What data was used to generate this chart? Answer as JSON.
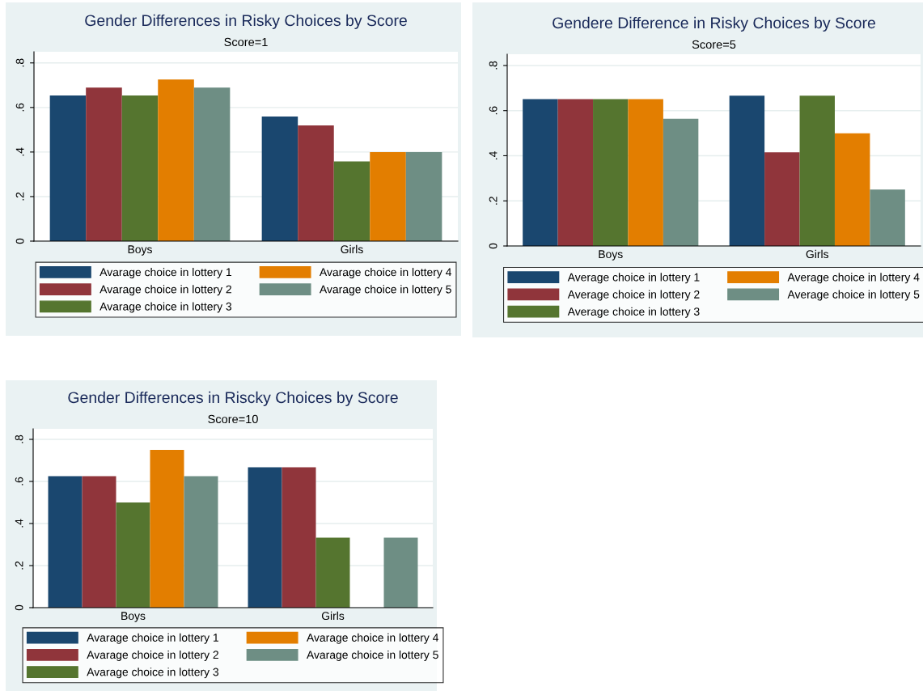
{
  "chart_data": [
    {
      "type": "bar",
      "title": "Gender Differences in Risky Choices by Score",
      "subtitle": "Score=1",
      "categories": [
        "Boys",
        "Girls"
      ],
      "ylim": [
        0,
        0.85
      ],
      "yticks": [
        0,
        {
          "value": 0.2,
          "label": ".2"
        },
        {
          "value": 0.4,
          "label": ".4"
        },
        {
          "value": 0.6,
          "label": ".6"
        },
        {
          "value": 0.8,
          "label": ".8"
        }
      ],
      "grid": "y",
      "legend": "bottom",
      "series": [
        {
          "name": "Avarage choice in lottery 1",
          "color": "#1a476f",
          "values": [
            0.654,
            0.559
          ]
        },
        {
          "name": "Avarage choice in lottery 2",
          "color": "#90353b",
          "values": [
            0.689,
            0.519
          ]
        },
        {
          "name": "Avarage choice in lottery 3",
          "color": "#55752f",
          "values": [
            0.654,
            0.358
          ]
        },
        {
          "name": "Avarage choice in lottery 4",
          "color": "#e37e00",
          "values": [
            0.726,
            0.4
          ]
        },
        {
          "name": "Avarage choice in lottery 5",
          "color": "#6e8e84",
          "values": [
            0.689,
            0.4
          ]
        }
      ]
    },
    {
      "type": "bar",
      "title": "Gendere Difference in Risky Choices by Score",
      "subtitle": "Score=5",
      "categories": [
        "Boys",
        "Girls"
      ],
      "ylim": [
        0,
        0.85
      ],
      "yticks": [
        0,
        {
          "value": 0.2,
          "label": ".2"
        },
        {
          "value": 0.4,
          "label": ".4"
        },
        {
          "value": 0.6,
          "label": ".6"
        },
        {
          "value": 0.8,
          "label": ".8"
        }
      ],
      "grid": "y",
      "legend": "bottom",
      "series": [
        {
          "name": "Average choice in lottery 1",
          "color": "#1a476f",
          "values": [
            0.651,
            0.666
          ]
        },
        {
          "name": "Average choice in lottery 2",
          "color": "#90353b",
          "values": [
            0.651,
            0.415
          ]
        },
        {
          "name": "Average choice in lottery 3",
          "color": "#55752f",
          "values": [
            0.651,
            0.666
          ]
        },
        {
          "name": "Average choice in lottery 4",
          "color": "#e37e00",
          "values": [
            0.651,
            0.499
          ]
        },
        {
          "name": "Average choice in lottery 5",
          "color": "#6e8e84",
          "values": [
            0.564,
            0.25
          ]
        }
      ]
    },
    {
      "type": "bar",
      "title": "Gender Differences in Riscky Choices by Score",
      "subtitle": "Score=10",
      "categories": [
        "Boys",
        "Girls"
      ],
      "ylim": [
        0,
        0.85
      ],
      "yticks": [
        0,
        {
          "value": 0.2,
          "label": ".2"
        },
        {
          "value": 0.4,
          "label": ".4"
        },
        {
          "value": 0.6,
          "label": ".6"
        },
        {
          "value": 0.8,
          "label": ".8"
        }
      ],
      "grid": "y",
      "legend": "bottom",
      "series": [
        {
          "name": "Avarage choice in lottery 1",
          "color": "#1a476f",
          "values": [
            0.625,
            0.667
          ]
        },
        {
          "name": "Avarage choice in lottery 2",
          "color": "#90353b",
          "values": [
            0.625,
            0.667
          ]
        },
        {
          "name": "Avarage choice in lottery 3",
          "color": "#55752f",
          "values": [
            0.5,
            0.333
          ]
        },
        {
          "name": "Avarage choice in lottery 4",
          "color": "#e37e00",
          "values": [
            0.75,
            null
          ]
        },
        {
          "name": "Avarage choice in lottery 5",
          "color": "#6e8e84",
          "values": [
            0.625,
            0.333
          ]
        }
      ]
    }
  ]
}
